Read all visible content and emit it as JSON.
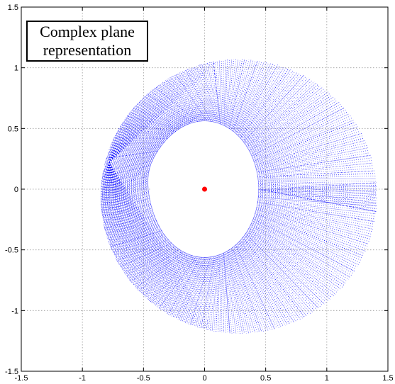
{
  "chart_data": {
    "type": "scatter",
    "title": "",
    "xlabel": "",
    "ylabel": "",
    "xlim": [
      -1.5,
      1.5
    ],
    "ylim": [
      -1.5,
      1.5
    ],
    "grid": true,
    "x_ticks": [
      "-1.5",
      "-1",
      "-0.5",
      "0",
      "0.5",
      "1",
      "1.5"
    ],
    "y_ticks": [
      "1.5",
      "1",
      "0.5",
      "0",
      "-0.5",
      "-1",
      "-1.5"
    ],
    "annotation": [
      "Complex plane",
      "representation"
    ],
    "series": [
      {
        "color": "#0000ff",
        "style": "dotted ray segments",
        "inner_boundary": {
          "center": [
            0,
            0
          ],
          "rx": 0.44,
          "ry": 0.56
        },
        "outer_boundary": {
          "center": [
            0.28,
            -0.06
          ],
          "r": 1.13
        },
        "pinch_point": [
          -0.78,
          0.22
        ]
      },
      {
        "color": "#ff0000",
        "points": [
          [
            0,
            0
          ]
        ]
      }
    ]
  }
}
